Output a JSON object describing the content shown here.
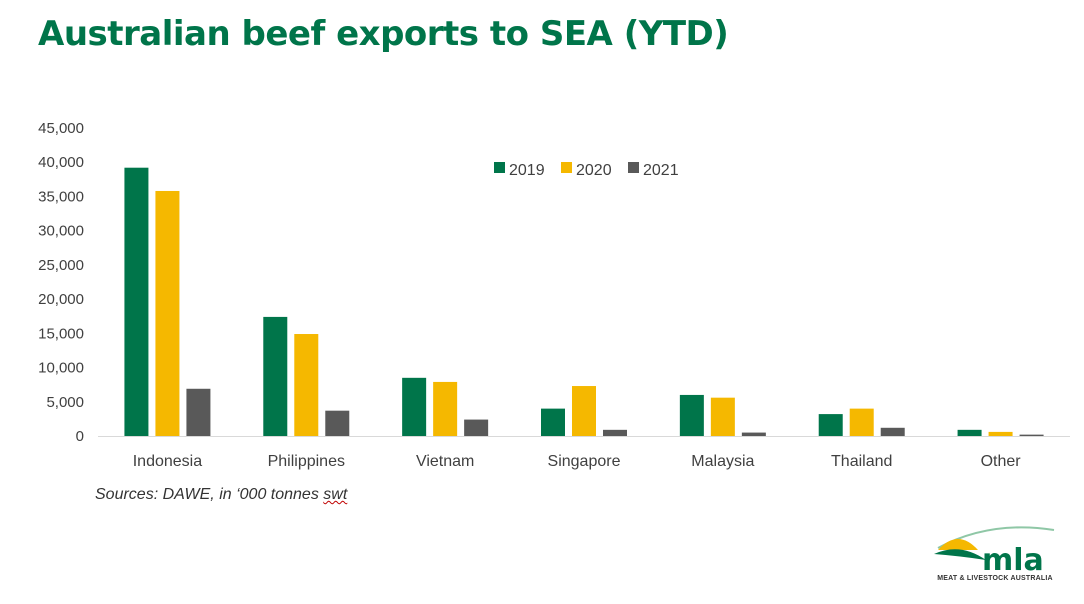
{
  "page": {
    "title": "Australian beef exports to SEA (YTD)"
  },
  "source": {
    "prefix": "Sources: DAWE, in ‘000 tonnes ",
    "underlined": "swt"
  },
  "logo": {
    "wordmark": "mla",
    "tagline": "MEAT & LIVESTOCK AUSTRALIA"
  },
  "colors": {
    "brand_green": "#00754a",
    "gold": "#f5b800",
    "grey": "#595959"
  },
  "chart_data": {
    "type": "bar",
    "title": "",
    "xlabel": "",
    "ylabel": "",
    "categories": [
      "Indonesia",
      "Philippines",
      "Vietnam",
      "Singapore",
      "Malaysia",
      "Thailand",
      "Other"
    ],
    "series": [
      {
        "name": "2019",
        "color": "#00754a",
        "values": [
          39200,
          17400,
          8500,
          4000,
          6000,
          3200,
          900
        ]
      },
      {
        "name": "2020",
        "color": "#f5b800",
        "values": [
          35800,
          14900,
          7900,
          7300,
          5600,
          4000,
          600
        ]
      },
      {
        "name": "2021",
        "color": "#595959",
        "values": [
          6900,
          3700,
          2400,
          900,
          500,
          1200,
          200
        ]
      }
    ],
    "ylim": [
      0,
      45000
    ],
    "yticks": [
      0,
      5000,
      10000,
      15000,
      20000,
      25000,
      30000,
      35000,
      40000,
      45000
    ],
    "ytick_labels": [
      "0",
      "5,000",
      "10,000",
      "15,000",
      "20,000",
      "25,000",
      "30,000",
      "35,000",
      "40,000",
      "45,000"
    ],
    "grid": false,
    "legend": "top-center"
  }
}
